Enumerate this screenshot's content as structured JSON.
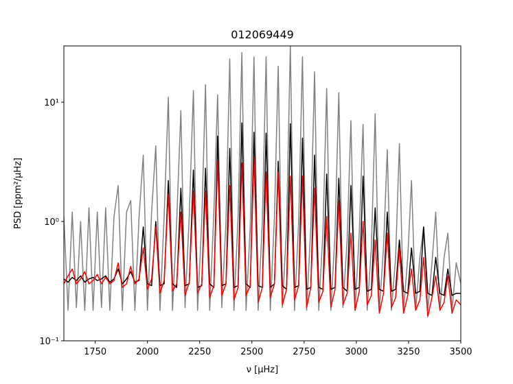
{
  "chart_data": {
    "type": "line",
    "title": "012069449",
    "xlabel": "ν [μHz]",
    "ylabel": "PSD [ppm²/μHz]",
    "yscale": "log",
    "xlim": [
      1600,
      3500
    ],
    "ylim": [
      0.1,
      29.6
    ],
    "xticks": [
      1750,
      2000,
      2250,
      2500,
      2750,
      3000,
      3250,
      3500
    ],
    "yticks": [
      {
        "value": 0.1,
        "label": "10⁻¹"
      },
      {
        "value": 1,
        "label": "10⁰"
      },
      {
        "value": 10,
        "label": "10¹"
      }
    ],
    "x": [
      1600,
      1620,
      1640,
      1660,
      1680,
      1700,
      1720,
      1740,
      1760,
      1780,
      1800,
      1820,
      1840,
      1860,
      1880,
      1900,
      1920,
      1940,
      1960,
      1980,
      2000,
      2020,
      2040,
      2060,
      2080,
      2100,
      2120,
      2140,
      2160,
      2180,
      2200,
      2220,
      2240,
      2260,
      2278,
      2298,
      2318,
      2336,
      2356,
      2376,
      2394,
      2414,
      2434,
      2452,
      2472,
      2492,
      2510,
      2530,
      2550,
      2568,
      2588,
      2608,
      2626,
      2646,
      2666,
      2684,
      2704,
      2724,
      2742,
      2762,
      2782,
      2800,
      2820,
      2840,
      2858,
      2878,
      2898,
      2916,
      2936,
      2956,
      2974,
      2994,
      3014,
      3032,
      3052,
      3072,
      3090,
      3110,
      3130,
      3148,
      3168,
      3188,
      3206,
      3226,
      3246,
      3264,
      3284,
      3304,
      3322,
      3342,
      3362,
      3380,
      3400,
      3420,
      3438,
      3458,
      3478,
      3500
    ],
    "series": [
      {
        "color": "#808080",
        "values": [
          1.1,
          0.18,
          1.2,
          0.19,
          1.0,
          0.18,
          1.3,
          0.18,
          1.2,
          0.19,
          1.3,
          0.18,
          1.1,
          2.0,
          0.18,
          1.2,
          1.5,
          0.18,
          1.1,
          3.6,
          0.18,
          1.2,
          4.3,
          0.18,
          1.1,
          11,
          0.18,
          1.0,
          8.5,
          0.19,
          1.1,
          12.5,
          0.18,
          1.0,
          14,
          0.18,
          1.2,
          11.5,
          0.19,
          1.0,
          23,
          0.18,
          1.1,
          26,
          0.18,
          0.9,
          24,
          0.18,
          1.0,
          24,
          0.18,
          1.1,
          20,
          0.19,
          0.9,
          30,
          0.18,
          1.0,
          24,
          0.18,
          0.9,
          18,
          0.18,
          0.8,
          13,
          0.18,
          0.8,
          12,
          0.19,
          0.7,
          7,
          0.18,
          0.8,
          6.5,
          0.18,
          0.6,
          8,
          0.18,
          0.6,
          4,
          0.18,
          0.5,
          4.5,
          0.18,
          0.5,
          2.2,
          0.18,
          0.5,
          0.9,
          0.18,
          0.45,
          1.2,
          0.18,
          0.5,
          0.8,
          0.18,
          0.45,
          0.3
        ]
      },
      {
        "color": "#000000",
        "values": [
          0.33,
          0.31,
          0.34,
          0.32,
          0.35,
          0.31,
          0.33,
          0.34,
          0.32,
          0.33,
          0.35,
          0.31,
          0.33,
          0.4,
          0.3,
          0.33,
          0.38,
          0.31,
          0.32,
          0.9,
          0.3,
          0.29,
          1.0,
          0.29,
          0.3,
          2.2,
          0.3,
          0.28,
          1.9,
          0.29,
          0.3,
          2.7,
          0.28,
          0.29,
          2.8,
          0.3,
          0.28,
          5.2,
          0.29,
          0.3,
          4.1,
          0.28,
          0.29,
          6.7,
          0.3,
          0.28,
          5.6,
          0.29,
          0.28,
          5.5,
          0.28,
          0.3,
          3.2,
          0.29,
          0.27,
          6.6,
          0.28,
          0.29,
          5.0,
          0.27,
          0.28,
          3.6,
          0.28,
          0.27,
          2.5,
          0.27,
          0.28,
          2.3,
          0.28,
          0.26,
          2.0,
          0.27,
          0.28,
          2.4,
          0.26,
          0.27,
          1.3,
          0.27,
          0.26,
          1.2,
          0.26,
          0.27,
          0.7,
          0.26,
          0.25,
          0.6,
          0.25,
          0.26,
          0.9,
          0.25,
          0.24,
          0.5,
          0.25,
          0.24,
          0.4,
          0.24,
          0.25,
          0.25
        ]
      },
      {
        "color": "#ff0000",
        "values": [
          0.3,
          0.35,
          0.4,
          0.3,
          0.33,
          0.38,
          0.3,
          0.32,
          0.36,
          0.3,
          0.34,
          0.3,
          0.32,
          0.45,
          0.28,
          0.3,
          0.42,
          0.3,
          0.33,
          0.6,
          0.27,
          0.33,
          0.9,
          0.25,
          0.32,
          1.7,
          0.26,
          0.3,
          1.2,
          0.24,
          0.31,
          1.8,
          0.25,
          0.3,
          1.8,
          0.23,
          0.29,
          3.2,
          0.24,
          0.3,
          2.0,
          0.22,
          0.28,
          3.1,
          0.24,
          0.29,
          3.5,
          0.21,
          0.28,
          2.6,
          0.23,
          0.3,
          2.6,
          0.2,
          0.27,
          2.4,
          0.22,
          0.29,
          2.4,
          0.19,
          0.28,
          1.9,
          0.21,
          0.26,
          1.1,
          0.19,
          0.27,
          1.5,
          0.2,
          0.25,
          0.8,
          0.18,
          0.26,
          1.0,
          0.2,
          0.24,
          0.7,
          0.17,
          0.25,
          0.8,
          0.19,
          0.23,
          0.6,
          0.17,
          0.24,
          0.4,
          0.18,
          0.22,
          0.5,
          0.16,
          0.23,
          0.35,
          0.18,
          0.21,
          0.35,
          0.17,
          0.22,
          0.2
        ]
      }
    ]
  }
}
